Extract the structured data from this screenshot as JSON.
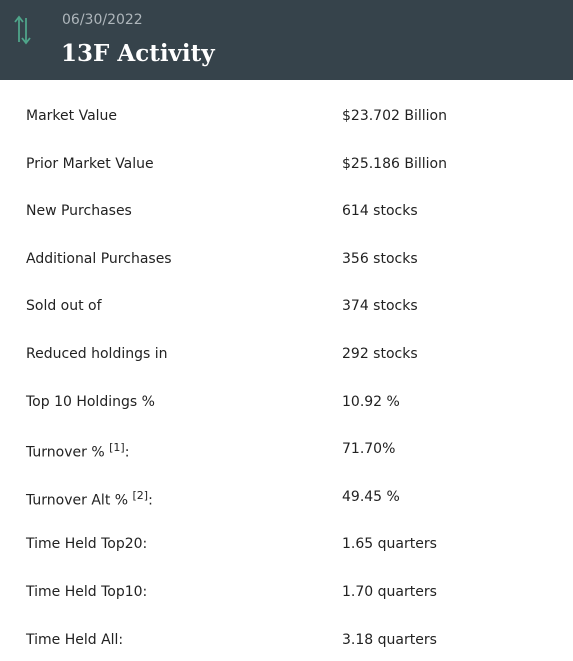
{
  "header": {
    "date": "06/30/2022",
    "title": "13F Activity"
  },
  "rows": [
    {
      "label": "Market Value",
      "value": "$23.702 Billion"
    },
    {
      "label": "Prior Market Value",
      "value": "$25.186 Billion"
    },
    {
      "label": "New Purchases",
      "value": "614 stocks"
    },
    {
      "label": "Additional Purchases",
      "value": "356 stocks"
    },
    {
      "label": "Sold out of",
      "value": "374 stocks"
    },
    {
      "label": "Reduced holdings in",
      "value": "292 stocks"
    },
    {
      "label": "Top 10 Holdings %",
      "value": "10.92 %"
    },
    {
      "label": "Turnover %",
      "note": "[1]",
      "suffix": ":",
      "value": "71.70%"
    },
    {
      "label": "Turnover Alt %",
      "note": "[2]",
      "suffix": ":",
      "value": "49.45 %"
    },
    {
      "label": "Time Held Top20:",
      "value": "1.65 quarters"
    },
    {
      "label": "Time Held Top10:",
      "value": "1.70 quarters"
    },
    {
      "label": "Time Held All:",
      "value": "3.18 quarters"
    }
  ]
}
